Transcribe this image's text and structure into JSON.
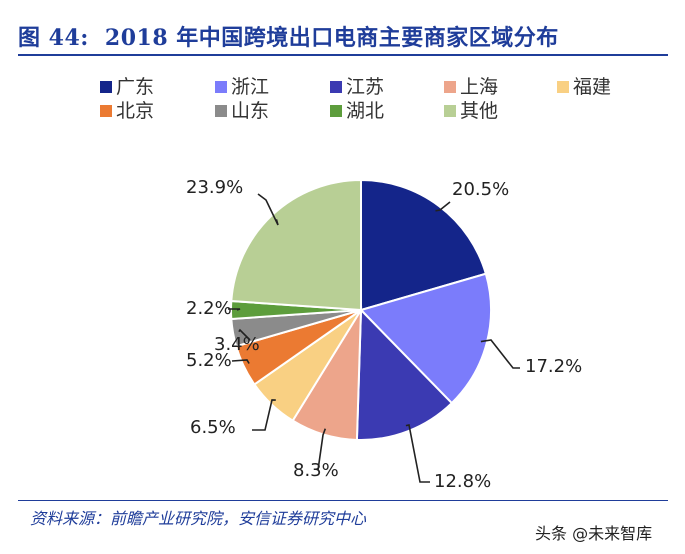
{
  "figure": {
    "number": "图 44:",
    "title": "2018 年中国跨境出口电商主要商家区域分布",
    "source": "资料来源：前瞻产业研究院，安信证券研究中心",
    "watermark": "头条 @未来智库",
    "accent_color": "#1f3d9a"
  },
  "chart_data": {
    "type": "pie",
    "title": "2018 年中国跨境出口电商主要商家区域分布",
    "start": "12 o'clock",
    "direction": "clockwise",
    "legend_position": "top",
    "slices": [
      {
        "name": "广东",
        "value": 20.5,
        "label": "20.5%",
        "color": "#14258a"
      },
      {
        "name": "浙江",
        "value": 17.2,
        "label": "17.2%",
        "color": "#7b7cfb"
      },
      {
        "name": "江苏",
        "value": 12.8,
        "label": "12.8%",
        "color": "#3b3ab2"
      },
      {
        "name": "上海",
        "value": 8.3,
        "label": "8.3%",
        "color": "#eda58b"
      },
      {
        "name": "福建",
        "value": 6.5,
        "label": "6.5%",
        "color": "#f9d083"
      },
      {
        "name": "北京",
        "value": 5.2,
        "label": "5.2%",
        "color": "#eb7a32"
      },
      {
        "name": "山东",
        "value": 3.4,
        "label": "3.4%",
        "color": "#8b8b8b"
      },
      {
        "name": "湖北",
        "value": 2.2,
        "label": "2.2%",
        "color": "#5d9d3c"
      },
      {
        "name": "其他",
        "value": 23.9,
        "label": "23.9%",
        "color": "#b8cf95"
      }
    ]
  }
}
